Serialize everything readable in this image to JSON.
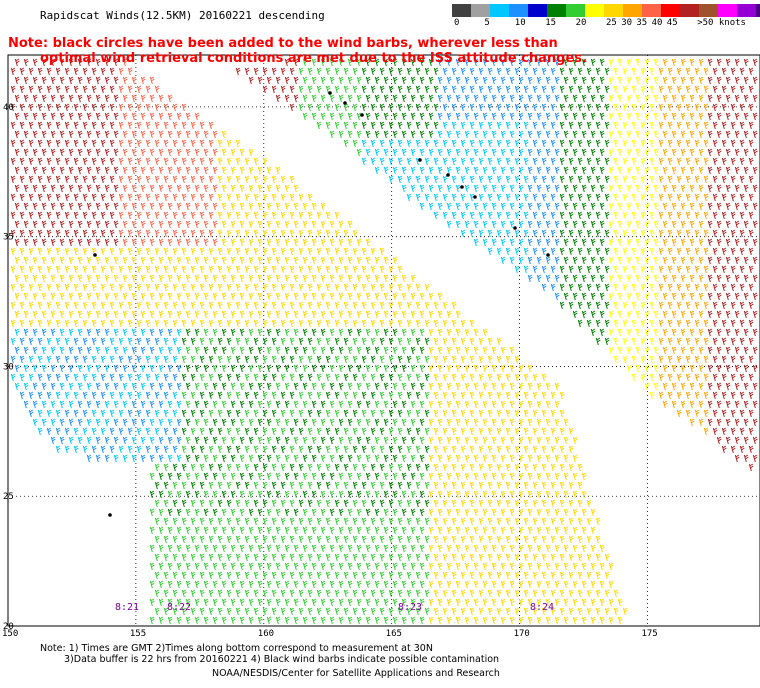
{
  "title": "Rapidscat Winds(12.5KM) 20160221 descending",
  "note": {
    "line1": "Note: black circles have been added to the wind barbs, wherever less than",
    "line2": "optimal wind retrieval conditions are met due to the ISS attitude changes."
  },
  "legend": {
    "colors": [
      "#404040",
      "#a0a0a0",
      "#00c8ff",
      "#1e90ff",
      "#0000cd",
      "#008000",
      "#32cd32",
      "#ffff00",
      "#ffd700",
      "#ffa500",
      "#ff6347",
      "#ff0000",
      "#b22222",
      "#a0522d",
      "#ff00ff",
      "#9400d3",
      "#4b0082"
    ],
    "labels": [
      {
        "text": "0",
        "slot": 0
      },
      {
        "text": "5",
        "slot": 2
      },
      {
        "text": "10",
        "slot": 4
      },
      {
        "text": "15",
        "slot": 6
      },
      {
        "text": "20",
        "slot": 8
      },
      {
        "text": "25",
        "slot": 10
      },
      {
        "text": "30",
        "slot": 11
      },
      {
        "text": "35",
        "slot": 12
      },
      {
        "text": "40",
        "slot": 13
      },
      {
        "text": "45",
        "slot": 14
      },
      {
        "text": ">50 knots",
        "slot": 16
      }
    ]
  },
  "map": {
    "lon_range": [
      150,
      179.4
    ],
    "lat_range": [
      20,
      42
    ],
    "lon_ticks": [
      "150",
      "155",
      "160",
      "165",
      "170",
      "175"
    ],
    "lat_ticks": [
      "20",
      "25",
      "30",
      "35",
      "40"
    ],
    "pass_labels": [
      "8:21",
      "8:22",
      "8:23",
      "8:24"
    ]
  },
  "footer": {
    "line1": "Note: 1) Times are GMT 2)Times along bottom correspond to measurement at 30N",
    "line2": "3)Data buffer is 22 hrs from 20160221 4) Black wind barbs indicate possible contamination",
    "line3": "NOAA/NESDIS/Center for Satellite Applications and Research"
  }
}
